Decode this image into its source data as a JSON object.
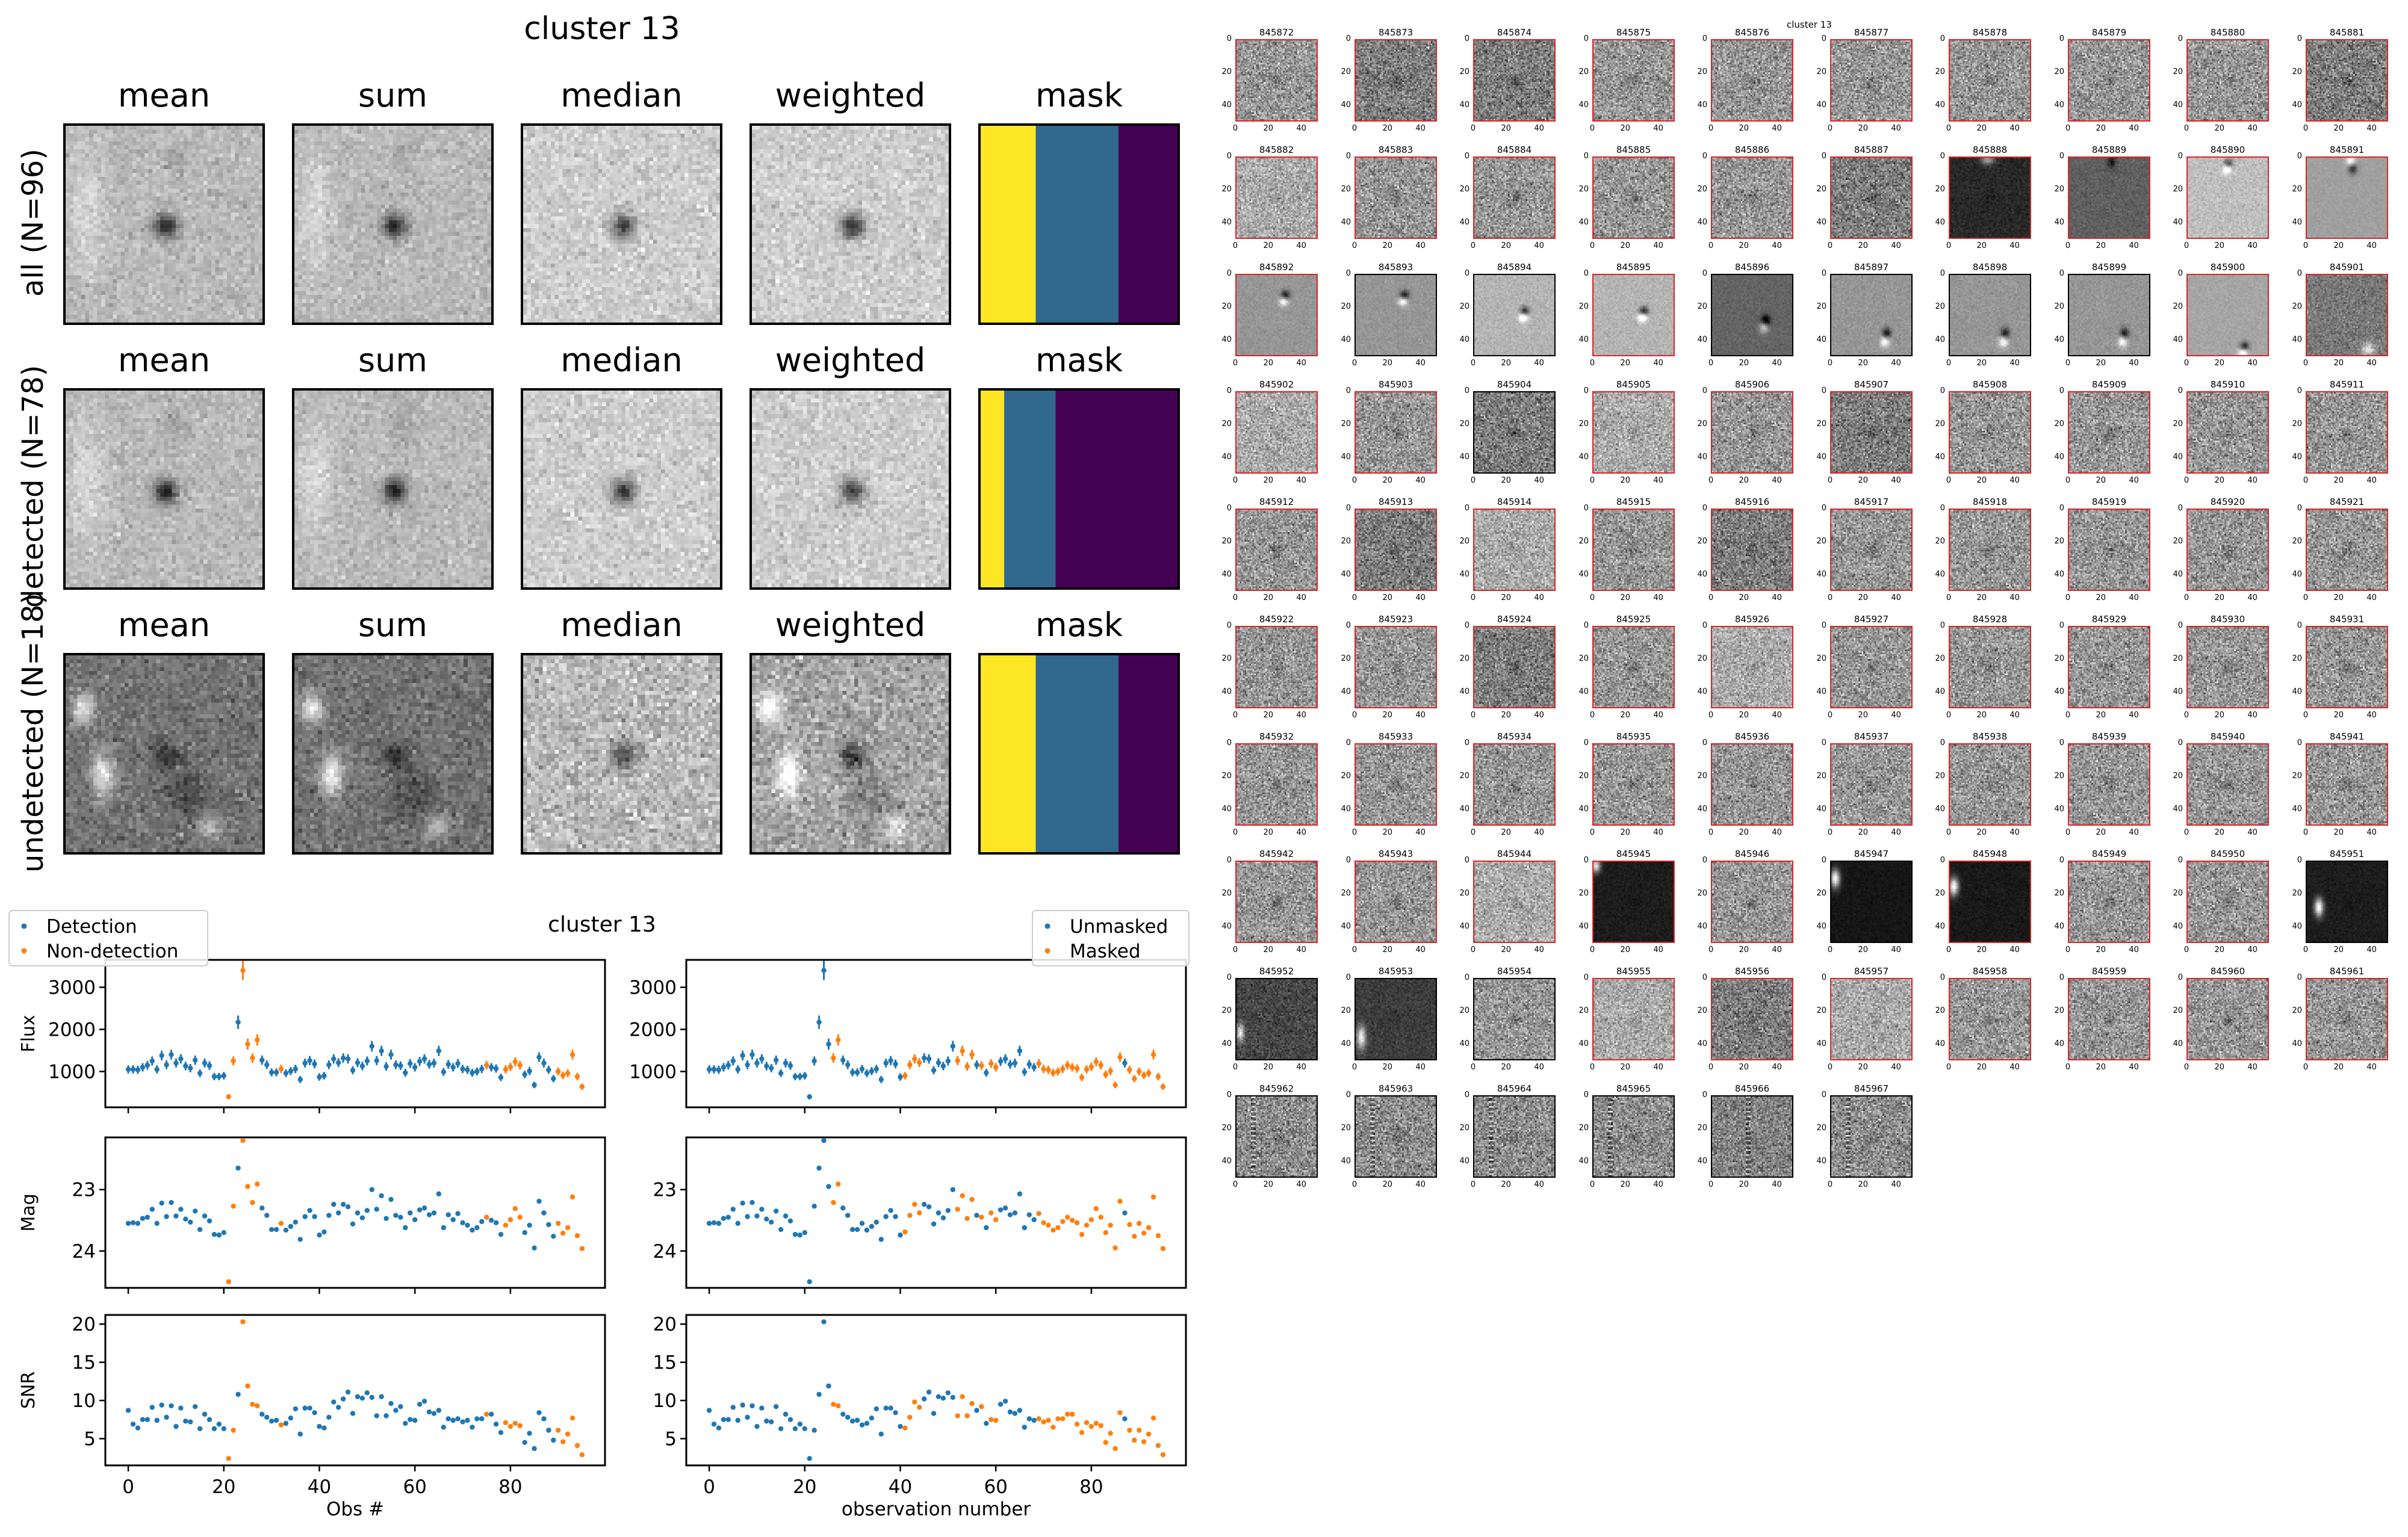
{
  "stack_figure": {
    "title": "cluster 13",
    "columns": [
      "mean",
      "sum",
      "median",
      "weighted",
      "mask"
    ],
    "rows": [
      {
        "label": "all (N=96)",
        "mask_fractions": [
          0.28,
          0.42,
          0.3
        ]
      },
      {
        "label": "detected (N=78)",
        "mask_fractions": [
          0.12,
          0.26,
          0.62
        ]
      },
      {
        "label": "undetected (N=18)",
        "mask_fractions": [
          0.28,
          0.42,
          0.3
        ]
      }
    ],
    "mask_colors": [
      "#fde725",
      "#31688e",
      "#440154"
    ]
  },
  "lightcurve_figure": {
    "title": "cluster 13",
    "left_legend": [
      "Detection",
      "Non-detection"
    ],
    "right_legend": [
      "Unmasked",
      "Masked"
    ],
    "colors": {
      "blue": "#1f77b4",
      "orange": "#ff7f0e"
    }
  },
  "chart_data": [
    {
      "type": "scatter",
      "title": "cluster 13",
      "xlabel": "Obs #",
      "panels": [
        {
          "ylabel": "Flux",
          "ylim": [
            150,
            3650
          ],
          "yticks": [
            "1000",
            "2000",
            "3000"
          ],
          "ytick_values": [
            1000,
            2000,
            3000
          ],
          "errorbars": true,
          "inverted": false
        },
        {
          "ylabel": "Mag",
          "ylim": [
            24.6,
            22.15
          ],
          "yticks": [
            "23",
            "24"
          ],
          "ytick_values": [
            23,
            24
          ],
          "errorbars": false,
          "inverted": true
        },
        {
          "ylabel": "SNR",
          "ylim": [
            1.5,
            21.2
          ],
          "yticks": [
            "5",
            "10",
            "15",
            "20"
          ],
          "ytick_values": [
            5,
            10,
            15,
            20
          ],
          "errorbars": false,
          "inverted": false
        }
      ],
      "xlim": [
        -4.8,
        99.8
      ],
      "xticks": [
        "0",
        "20",
        "40",
        "60",
        "80"
      ],
      "xtick_values": [
        0,
        20,
        40,
        60,
        80
      ],
      "legend": "top-left",
      "series": [
        {
          "name": "Detection",
          "color": "#1f77b4"
        },
        {
          "name": "Non-detection",
          "color": "#ff7f0e"
        }
      ],
      "highlight_indices": [
        21,
        22,
        24,
        25,
        26,
        27,
        32,
        75,
        79,
        80,
        81,
        82,
        90,
        91,
        92,
        93,
        94,
        95
      ]
    },
    {
      "type": "scatter",
      "title": "",
      "xlabel": "observation number",
      "panels": [
        {
          "ylabel": "",
          "ylim": [
            150,
            3650
          ],
          "yticks": [
            "1000",
            "2000",
            "3000"
          ],
          "ytick_values": [
            1000,
            2000,
            3000
          ],
          "errorbars": true,
          "inverted": false
        },
        {
          "ylabel": "",
          "ylim": [
            24.6,
            22.15
          ],
          "yticks": [
            "23",
            "24"
          ],
          "ytick_values": [
            23,
            24
          ],
          "errorbars": false,
          "inverted": true
        },
        {
          "ylabel": "",
          "ylim": [
            1.5,
            21.2
          ],
          "yticks": [
            "5",
            "10",
            "15",
            "20"
          ],
          "ytick_values": [
            5,
            10,
            15,
            20
          ],
          "errorbars": false,
          "inverted": false
        }
      ],
      "xlim": [
        -4.8,
        99.8
      ],
      "xticks": [
        "0",
        "20",
        "40",
        "60",
        "80"
      ],
      "xtick_values": [
        0,
        20,
        40,
        60,
        80
      ],
      "legend": "top-right",
      "series": [
        {
          "name": "Unmasked",
          "color": "#1f77b4"
        },
        {
          "name": "Masked",
          "color": "#ff7f0e"
        }
      ],
      "highlight_indices": [
        26,
        27,
        41,
        42,
        43,
        44,
        52,
        53,
        54,
        55,
        57,
        59,
        60,
        69,
        70,
        71,
        72,
        73,
        74,
        75,
        76,
        77,
        78,
        79,
        80,
        81,
        82,
        83,
        84,
        85,
        86,
        88,
        89,
        90,
        91,
        92,
        93,
        94,
        95
      ]
    }
  ],
  "observations": {
    "flux": [
      1050,
      1050,
      1040,
      1100,
      1150,
      1250,
      1050,
      1380,
      1160,
      1400,
      1200,
      1300,
      1130,
      1080,
      1270,
      960,
      1200,
      1140,
      880,
      880,
      900,
      400,
      1250,
      2170,
      3400,
      1650,
      1320,
      1750,
      1270,
      1160,
      980,
      980,
      1060,
      960,
      1010,
      1060,
      810,
      1200,
      1260,
      1180,
      870,
      900,
      1160,
      1300,
      1210,
      1320,
      1300,
      1030,
      1210,
      1130,
      1250,
      1600,
      1260,
      1490,
      1120,
      1400,
      1160,
      1140,
      970,
      1190,
      1100,
      1240,
      1300,
      1170,
      1200,
      1490,
      990,
      1170,
      1100,
      1190,
      1060,
      1040,
      970,
      1000,
      1060,
      1150,
      1100,
      1070,
      860,
      1050,
      1110,
      1230,
      1150,
      930,
      1010,
      680,
      1340,
      1200,
      1040,
      830,
      1000,
      910,
      960,
      1400,
      880,
      640
    ],
    "mag": [
      23.55,
      23.54,
      23.55,
      23.47,
      23.45,
      23.32,
      23.55,
      23.22,
      23.44,
      23.21,
      23.43,
      23.32,
      23.48,
      23.53,
      23.35,
      23.65,
      23.43,
      23.51,
      23.73,
      23.74,
      23.7,
      24.5,
      23.27,
      22.65,
      22.2,
      22.95,
      23.21,
      22.91,
      23.3,
      23.42,
      23.65,
      23.65,
      23.55,
      23.66,
      23.6,
      23.53,
      23.81,
      23.44,
      23.34,
      23.44,
      23.74,
      23.69,
      23.42,
      23.24,
      23.38,
      23.24,
      23.28,
      23.56,
      23.38,
      23.46,
      23.34,
      23.0,
      23.32,
      23.1,
      23.47,
      23.16,
      23.42,
      23.45,
      23.62,
      23.38,
      23.49,
      23.33,
      23.3,
      23.41,
      23.38,
      23.07,
      23.62,
      23.41,
      23.49,
      23.39,
      23.54,
      23.58,
      23.66,
      23.62,
      23.52,
      23.45,
      23.5,
      23.54,
      23.73,
      23.58,
      23.49,
      23.31,
      23.45,
      23.7,
      23.58,
      23.95,
      23.19,
      23.38,
      23.57,
      23.76,
      23.55,
      23.71,
      23.62,
      23.12,
      23.75,
      23.96
    ],
    "snr": [
      8.7,
      6.9,
      6.4,
      7.5,
      7.5,
      9.1,
      7.4,
      9.4,
      7.8,
      9.3,
      6.6,
      9.0,
      7.3,
      7.2,
      9.2,
      6.3,
      8.2,
      7.5,
      6.3,
      6.9,
      6.3,
      2.4,
      6.1,
      10.8,
      20.3,
      11.9,
      9.5,
      9.3,
      8.2,
      7.8,
      7.3,
      7.4,
      6.8,
      7.0,
      7.7,
      8.9,
      5.6,
      9.0,
      9.0,
      8.4,
      6.6,
      6.4,
      7.8,
      9.8,
      9.1,
      10.2,
      11.1,
      8.3,
      10.5,
      10.3,
      11.0,
      10.4,
      8.0,
      10.5,
      8.0,
      9.6,
      8.7,
      9.2,
      7.0,
      7.5,
      7.4,
      9.5,
      9.9,
      8.5,
      8.3,
      8.7,
      6.5,
      7.6,
      7.4,
      7.6,
      7.2,
      7.4,
      6.5,
      7.6,
      7.6,
      8.2,
      8.2,
      6.9,
      5.8,
      7.1,
      6.6,
      7.0,
      6.7,
      4.5,
      5.7,
      3.7,
      8.4,
      7.6,
      6.1,
      4.8,
      6.1,
      4.6,
      5.6,
      7.7,
      4.1,
      2.9
    ]
  },
  "cutout_grid": {
    "title": "cluster 13",
    "axis_ticks": [
      "0",
      "20",
      "40"
    ],
    "cutouts": [
      {
        "id": "845872",
        "style": "noise",
        "detected": true
      },
      {
        "id": "845873",
        "style": "noise_dark",
        "detected": true
      },
      {
        "id": "845874",
        "style": "noise_dark",
        "detected": true
      },
      {
        "id": "845875",
        "style": "noise",
        "detected": true
      },
      {
        "id": "845876",
        "style": "noise",
        "detected": true
      },
      {
        "id": "845877",
        "style": "noise",
        "detected": true
      },
      {
        "id": "845878",
        "style": "noise",
        "detected": true
      },
      {
        "id": "845879",
        "style": "noise",
        "detected": true
      },
      {
        "id": "845880",
        "style": "noise",
        "detected": true
      },
      {
        "id": "845881",
        "style": "noise_dark",
        "detected": true
      },
      {
        "id": "845882",
        "style": "noise_light",
        "detected": true
      },
      {
        "id": "845883",
        "style": "noise",
        "detected": true
      },
      {
        "id": "845884",
        "style": "noise",
        "detected": true
      },
      {
        "id": "845885",
        "style": "noise",
        "detected": true
      },
      {
        "id": "845886",
        "style": "noise",
        "detected": true
      },
      {
        "id": "845887",
        "style": "noise_dark",
        "detected": true
      },
      {
        "id": "845888",
        "style": "very_dark",
        "detected": true
      },
      {
        "id": "845889",
        "style": "dark_smooth",
        "detected": true
      },
      {
        "id": "845890",
        "style": "light_smooth_top",
        "detected": true
      },
      {
        "id": "845891",
        "style": "smooth_dipole_top",
        "detected": true
      },
      {
        "id": "845892",
        "style": "smooth_dipole",
        "detected": true
      },
      {
        "id": "845893",
        "style": "smooth_dipole",
        "detected": false
      },
      {
        "id": "845894",
        "style": "light_smooth_dipole",
        "detected": false
      },
      {
        "id": "845895",
        "style": "light_smooth_dipole",
        "detected": true
      },
      {
        "id": "845896",
        "style": "dark_smooth_dipole",
        "detected": false
      },
      {
        "id": "845897",
        "style": "smooth_dipole_low",
        "detected": false
      },
      {
        "id": "845898",
        "style": "smooth_dipole_low",
        "detected": false
      },
      {
        "id": "845899",
        "style": "smooth_dipole_low",
        "detected": false
      },
      {
        "id": "845900",
        "style": "light_smooth_dipole_corner",
        "detected": true
      },
      {
        "id": "845901",
        "style": "noise_dark_corner",
        "detected": true
      },
      {
        "id": "845902",
        "style": "noise_light",
        "detected": true
      },
      {
        "id": "845903",
        "style": "noise",
        "detected": true
      },
      {
        "id": "845904",
        "style": "noise_dark",
        "detected": false
      },
      {
        "id": "845905",
        "style": "noise_light",
        "detected": true
      },
      {
        "id": "845906",
        "style": "noise",
        "detected": true
      },
      {
        "id": "845907",
        "style": "noise_dark",
        "detected": true
      },
      {
        "id": "845908",
        "style": "noise",
        "detected": true
      },
      {
        "id": "845909",
        "style": "noise",
        "detected": true
      },
      {
        "id": "845910",
        "style": "noise",
        "detected": true
      },
      {
        "id": "845911",
        "style": "noise",
        "detected": true
      },
      {
        "id": "845912",
        "style": "noise",
        "detected": true
      },
      {
        "id": "845913",
        "style": "noise_dark",
        "detected": true
      },
      {
        "id": "845914",
        "style": "noise_light",
        "detected": true
      },
      {
        "id": "845915",
        "style": "noise",
        "detected": true
      },
      {
        "id": "845916",
        "style": "noise_dark",
        "detected": true
      },
      {
        "id": "845917",
        "style": "noise",
        "detected": true
      },
      {
        "id": "845918",
        "style": "noise",
        "detected": true
      },
      {
        "id": "845919",
        "style": "noise",
        "detected": true
      },
      {
        "id": "845920",
        "style": "noise",
        "detected": true
      },
      {
        "id": "845921",
        "style": "noise",
        "detected": true
      },
      {
        "id": "845922",
        "style": "noise",
        "detected": true
      },
      {
        "id": "845923",
        "style": "noise",
        "detected": true
      },
      {
        "id": "845924",
        "style": "noise_dark",
        "detected": true
      },
      {
        "id": "845925",
        "style": "noise",
        "detected": true
      },
      {
        "id": "845926",
        "style": "noise_light",
        "detected": true
      },
      {
        "id": "845927",
        "style": "noise",
        "detected": true
      },
      {
        "id": "845928",
        "style": "noise",
        "detected": true
      },
      {
        "id": "845929",
        "style": "noise",
        "detected": true
      },
      {
        "id": "845930",
        "style": "noise",
        "detected": true
      },
      {
        "id": "845931",
        "style": "noise",
        "detected": true
      },
      {
        "id": "845932",
        "style": "noise",
        "detected": true
      },
      {
        "id": "845933",
        "style": "noise",
        "detected": true
      },
      {
        "id": "845934",
        "style": "noise",
        "detected": true
      },
      {
        "id": "845935",
        "style": "noise",
        "detected": true
      },
      {
        "id": "845936",
        "style": "noise",
        "detected": true
      },
      {
        "id": "845937",
        "style": "noise",
        "detected": true
      },
      {
        "id": "845938",
        "style": "noise",
        "detected": true
      },
      {
        "id": "845939",
        "style": "noise",
        "detected": true
      },
      {
        "id": "845940",
        "style": "noise",
        "detected": true
      },
      {
        "id": "845941",
        "style": "noise",
        "detected": true
      },
      {
        "id": "845942",
        "style": "noise",
        "detected": true
      },
      {
        "id": "845943",
        "style": "noise",
        "detected": true
      },
      {
        "id": "845944",
        "style": "noise_light",
        "detected": true
      },
      {
        "id": "845945",
        "style": "black_bright_corner",
        "detected": true
      },
      {
        "id": "845946",
        "style": "noise",
        "detected": true
      },
      {
        "id": "845947",
        "style": "black_bright_left",
        "detected": false
      },
      {
        "id": "845948",
        "style": "black_bright_left2",
        "detected": true
      },
      {
        "id": "845949",
        "style": "noise",
        "detected": true
      },
      {
        "id": "845950",
        "style": "noise",
        "detected": true
      },
      {
        "id": "845951",
        "style": "black_bright_mid",
        "detected": false
      },
      {
        "id": "845952",
        "style": "dark_bright_left_low",
        "detected": false
      },
      {
        "id": "845953",
        "style": "dark_bright_left_low2",
        "detected": false
      },
      {
        "id": "845954",
        "style": "noise",
        "detected": false
      },
      {
        "id": "845955",
        "style": "noise_light",
        "detected": true
      },
      {
        "id": "845956",
        "style": "noise_dark",
        "detected": true
      },
      {
        "id": "845957",
        "style": "noise_light",
        "detected": true
      },
      {
        "id": "845958",
        "style": "noise",
        "detected": true
      },
      {
        "id": "845959",
        "style": "noise",
        "detected": true
      },
      {
        "id": "845960",
        "style": "noise",
        "detected": true
      },
      {
        "id": "845961",
        "style": "noise",
        "detected": true
      },
      {
        "id": "845962",
        "style": "streaky",
        "detected": false
      },
      {
        "id": "845963",
        "style": "streaky",
        "detected": false
      },
      {
        "id": "845964",
        "style": "streaky",
        "detected": false
      },
      {
        "id": "845965",
        "style": "streaky",
        "detected": false
      },
      {
        "id": "845966",
        "style": "streaky_mid",
        "detected": false
      },
      {
        "id": "845967",
        "style": "streaky",
        "detected": false
      }
    ]
  }
}
